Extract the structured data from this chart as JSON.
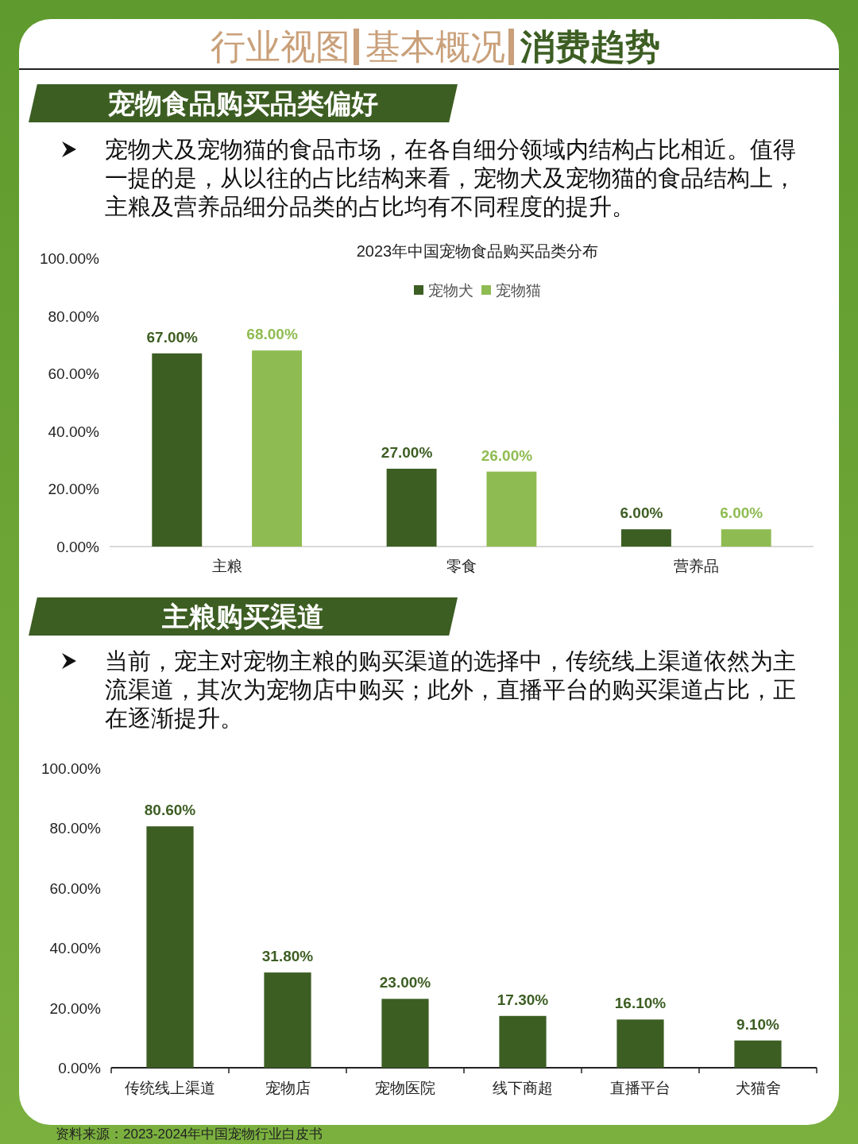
{
  "chart_data": [
    {
      "type": "bar",
      "title": "2023年中国宠物食品购买品类分布",
      "annotations": [
        "行业视图",
        "基本概况",
        "消费趋势",
        "宠物食品购买品类偏好",
        "宠物犬及宠物猫的食品市场，在各自细分领域内结构占比相近。值得一提的是，从以往的占比结构来看，宠物犬及宠物猫的食品结构上，主粮及营养品细分品类的占比均有不同程度的提升。"
      ],
      "categories": [
        "主粮",
        "零食",
        "营养品"
      ],
      "series": [
        {
          "name": "宠物犬",
          "color": "#3d5e23",
          "values": [
            67,
            27,
            6
          ],
          "value_labels": [
            "67.00%",
            "27.00%",
            "6.00%"
          ]
        },
        {
          "name": "宠物猫",
          "color": "#8fbc52",
          "values": [
            68,
            26,
            6
          ],
          "value_labels": [
            "68.00%",
            "26.00%",
            "6.00%"
          ]
        }
      ],
      "ylim": [
        0,
        100
      ],
      "yticks": [
        {
          "value": 0,
          "label": "0.00%"
        },
        {
          "value": 20,
          "label": "20.00%"
        },
        {
          "value": 40,
          "label": "40.00%"
        },
        {
          "value": 60,
          "label": "60.00%"
        },
        {
          "value": 80,
          "label": "80.00%"
        },
        {
          "value": 100,
          "label": "100.00%"
        }
      ],
      "legend": "top"
    },
    {
      "type": "bar",
      "annotations": [
        "主粮购买渠道",
        "当前，宠主对宠物主粮的购买渠道的选择中，传统线上渠道依然为主流渠道，其次为宠物店中购买；此外，直播平台的购买渠道占比，正在逐渐提升。",
        "资料来源：2023-2024年中国宠物行业白皮书"
      ],
      "categories": [
        "传统线上渠道",
        "宠物店",
        "宠物医院",
        "线下商超",
        "直播平台",
        "犬猫舍"
      ],
      "series": [
        {
          "color": "#3d5e23",
          "values": [
            80.6,
            31.8,
            23.0,
            17.3,
            16.1,
            9.1
          ],
          "value_labels": [
            "80.60%",
            "31.80%",
            "23.00%",
            "17.30%",
            "16.10%",
            "9.10%"
          ]
        }
      ],
      "ylim": [
        0,
        100
      ],
      "yticks": [
        {
          "value": 0,
          "label": "0.00%"
        },
        {
          "value": 20,
          "label": "20.00%"
        },
        {
          "value": 40,
          "label": "40.00%"
        },
        {
          "value": 60,
          "label": "60.00%"
        },
        {
          "value": 80,
          "label": "80.00%"
        },
        {
          "value": 100,
          "label": "100.00%"
        }
      ]
    }
  ]
}
